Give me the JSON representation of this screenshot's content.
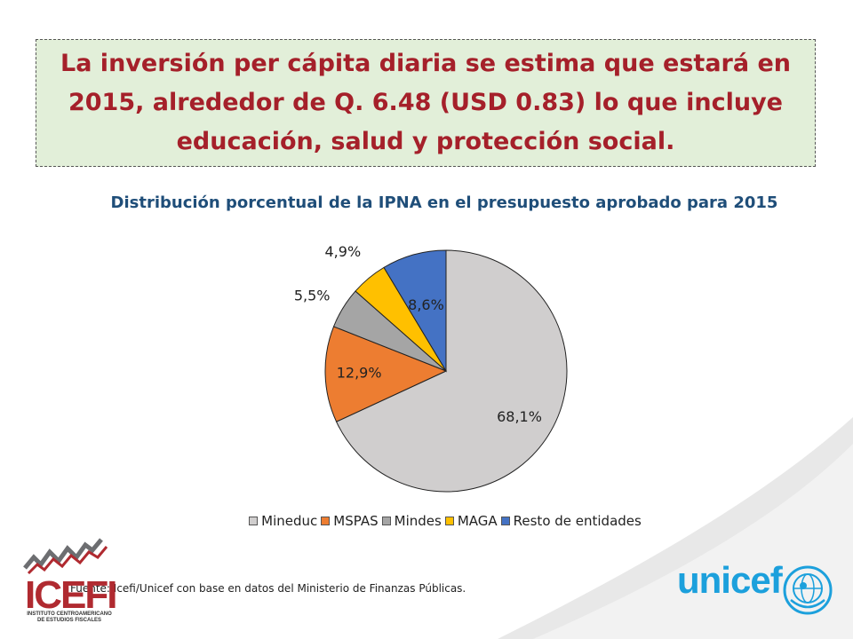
{
  "headline": "La inversión per cápita diaria se estima que estará en 2015, alrededor de Q. 6.48 (USD 0.83) lo que incluye educación, salud y protección social.",
  "source": "Fuente: Icefi/Unicef con base en datos del Ministerio de Finanzas Públicas.",
  "logos": {
    "icefi": "ICEFI",
    "icefi_subtitle": "INSTITUTO CENTROAMERICANO DE ESTUDIOS FISCALES",
    "unicef": "unicef"
  },
  "colors": {
    "headline_text": "#a5202a",
    "headline_box": "#e2efd9",
    "chart_title": "#1f4e79"
  },
  "chart_data": {
    "type": "pie",
    "title": "Distribución porcentual de la IPNA en el presupuesto aprobado para 2015",
    "legend_position": "bottom",
    "slices": [
      {
        "label": "Mineduc",
        "value": 68.1,
        "display": "68,1%",
        "color": "#d0cece"
      },
      {
        "label": "MSPAS",
        "value": 12.9,
        "display": "12,9%",
        "color": "#ed7d31"
      },
      {
        "label": "Mindes",
        "value": 5.5,
        "display": "5,5%",
        "color": "#a5a5a5"
      },
      {
        "label": "MAGA",
        "value": 4.9,
        "display": "4,9%",
        "color": "#ffc000"
      },
      {
        "label": "Resto de entidades",
        "value": 8.6,
        "display": "8,6%",
        "color": "#4472c4"
      }
    ]
  }
}
